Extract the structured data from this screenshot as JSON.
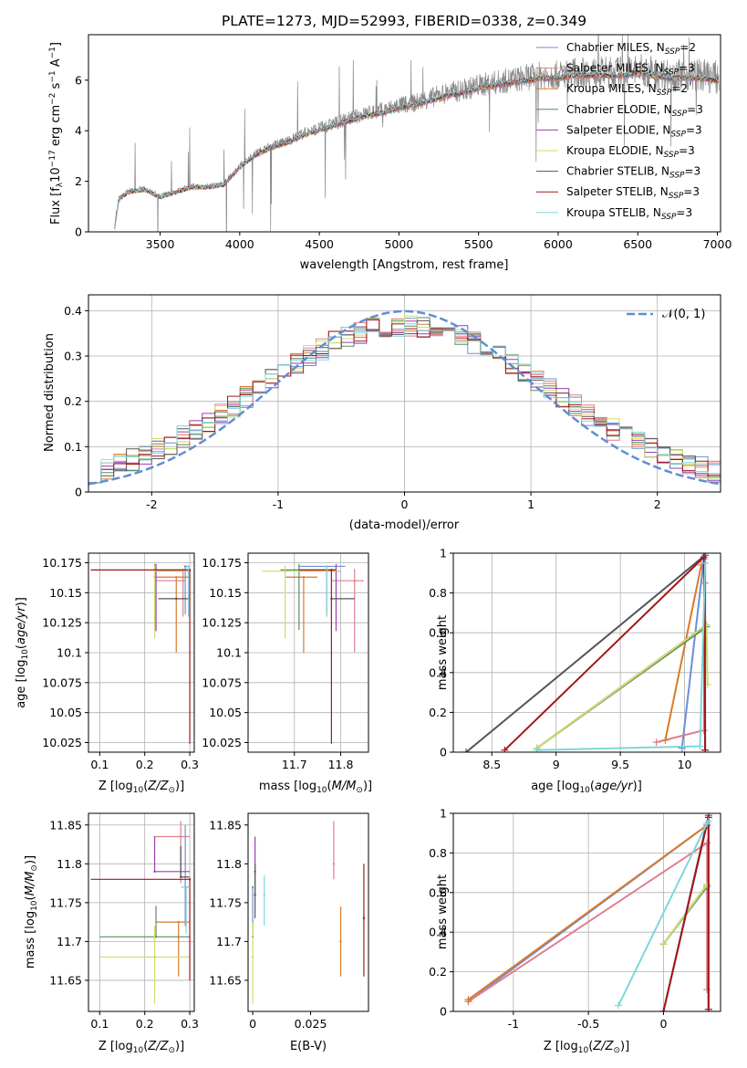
{
  "figure_title": "PLATE=1273, MJD=52993, FIBERID=0338, z=0.349",
  "colors": {
    "Chabrier MILES": "#6b8fd8",
    "Salpeter MILES": "#e07f8f",
    "Kroupa MILES": "#d97a2b",
    "Chabrier ELODIE": "#5f8a5f",
    "Salpeter ELODIE": "#9c3fb0",
    "Kroupa ELODIE": "#c9df6a",
    "Chabrier STELIB": "#555555",
    "Salpeter STELIB": "#a3161b",
    "Kroupa STELIB": "#7fd6dc"
  },
  "chart_data": [
    {
      "id": "spectrum",
      "type": "line",
      "title": "PLATE=1273, MJD=52993, FIBERID=0338, z=0.349",
      "xlabel": "wavelength [Angstrom, rest frame]",
      "ylabel": "Flux [f_λ 10^-17 erg cm^-2 s^-1 A^-1]",
      "xlim": [
        3050,
        7020
      ],
      "ylim": [
        0,
        7.8
      ],
      "xticks": [
        3500,
        4000,
        4500,
        5000,
        5500,
        6000,
        6500,
        7000
      ],
      "yticks": [
        0,
        2,
        4,
        6
      ],
      "grid": false,
      "legend": "top-right",
      "observed": {
        "x": [
          3210,
          3240,
          3300,
          3400,
          3500,
          3600,
          3700,
          3800,
          3900,
          4000,
          4100,
          4200,
          4300,
          4400,
          4500,
          4600,
          4700,
          4800,
          4900,
          5000,
          5100,
          5200,
          5300,
          5400,
          5500,
          5600,
          5700,
          5800,
          5900,
          6000,
          6100,
          6200,
          6300,
          6400,
          6500,
          6600,
          6700,
          6800,
          6900,
          7000
        ],
        "y": [
          0.0,
          1.3,
          1.6,
          1.7,
          1.4,
          1.6,
          1.8,
          1.8,
          1.9,
          2.6,
          3.1,
          3.4,
          3.6,
          3.9,
          4.1,
          4.3,
          4.5,
          4.7,
          4.8,
          5.0,
          5.1,
          5.3,
          5.5,
          5.6,
          5.8,
          5.9,
          6.0,
          6.1,
          6.2,
          6.2,
          6.3,
          6.3,
          6.3,
          6.3,
          6.4,
          6.3,
          6.2,
          6.2,
          6.2,
          6.1
        ]
      },
      "series": [
        {
          "name": "Chabrier MILES",
          "nssp": "2"
        },
        {
          "name": "Salpeter MILES",
          "nssp": "3"
        },
        {
          "name": "Kroupa MILES",
          "nssp": "2"
        },
        {
          "name": "Chabrier ELODIE",
          "nssp": "3"
        },
        {
          "name": "Salpeter ELODIE",
          "nssp": "3"
        },
        {
          "name": "Kroupa ELODIE",
          "nssp": "3"
        },
        {
          "name": "Chabrier STELIB",
          "nssp": "3"
        },
        {
          "name": "Salpeter STELIB",
          "nssp": "3"
        },
        {
          "name": "Kroupa STELIB",
          "nssp": "3"
        }
      ]
    },
    {
      "id": "residuals",
      "type": "step",
      "xlabel": "(data-model)/error",
      "ylabel": "Normed distribution",
      "xlim": [
        -2.5,
        2.5
      ],
      "ylim": [
        0,
        0.435
      ],
      "xticks": [
        -2,
        -1,
        0,
        1,
        2
      ],
      "yticks": [
        0.0,
        0.1,
        0.2,
        0.3,
        0.4
      ],
      "grid": true,
      "legend": "top-right",
      "reference": {
        "name": "𝒩(0, 1)",
        "mean": 0,
        "sigma": 1
      }
    },
    {
      "id": "age-vs-Z",
      "type": "errorbar",
      "xlabel": "Z [log10(Z/Z⊙)]",
      "ylabel": "age  [log10(age/yr)]",
      "xlim": [
        0.075,
        0.31
      ],
      "ylim": [
        10.017,
        10.183
      ],
      "xticks": [
        0.1,
        0.2,
        0.3
      ],
      "yticks": [
        10.025,
        10.05,
        10.075,
        10.1,
        10.125,
        10.15,
        10.175
      ],
      "grid": true,
      "points": [
        {
          "series": "Chabrier MILES",
          "x": 0.29,
          "xerr": [
            0.0,
            0.01
          ],
          "y": 10.172,
          "yerr": [
            0.04,
            0.0
          ]
        },
        {
          "series": "Salpeter MILES",
          "x": 0.285,
          "xerr": [
            0.06,
            0.005
          ],
          "y": 10.16,
          "yerr": [
            0.03,
            0.01
          ]
        },
        {
          "series": "Kroupa MILES",
          "x": 0.27,
          "xerr": [
            0.05,
            0.03
          ],
          "y": 10.163,
          "yerr": [
            0.063,
            0.0
          ]
        },
        {
          "series": "Chabrier ELODIE",
          "x": 0.222,
          "xerr": [
            0.0,
            0.08
          ],
          "y": 10.169,
          "yerr": [
            0.05,
            0.005
          ]
        },
        {
          "series": "Salpeter ELODIE",
          "x": 0.225,
          "xerr": [
            0.0,
            0.075
          ],
          "y": 10.168,
          "yerr": [
            0.05,
            0.006
          ]
        },
        {
          "series": "Kroupa ELODIE",
          "x": 0.222,
          "xerr": [
            0.0,
            0.08
          ],
          "y": 10.168,
          "yerr": [
            0.056,
            0.005
          ]
        },
        {
          "series": "Chabrier STELIB",
          "x": 0.27,
          "xerr": [
            0.04,
            0.03
          ],
          "y": 10.145,
          "yerr": [
            0.0,
            0.0
          ]
        },
        {
          "series": "Salpeter STELIB",
          "x": 0.3,
          "xerr": [
            0.22,
            0.0
          ],
          "y": 10.169,
          "yerr": [
            0.145,
            0.0
          ]
        },
        {
          "series": "Kroupa STELIB",
          "x": 0.297,
          "xerr": [
            0.0,
            0.003
          ],
          "y": 10.172,
          "yerr": [
            0.042,
            0.0
          ]
        }
      ]
    },
    {
      "id": "age-vs-mass",
      "type": "errorbar",
      "xlabel": "mass [log10(M/M⊙)]",
      "ylabel": "",
      "xlim": [
        11.6,
        11.86
      ],
      "ylim": [
        10.017,
        10.183
      ],
      "xticks": [
        11.7,
        11.8
      ],
      "yticks": [
        10.025,
        10.05,
        10.075,
        10.1,
        10.125,
        10.15,
        10.175
      ],
      "grid": true,
      "points": [
        {
          "series": "Chabrier MILES",
          "x": 11.77,
          "xerr": [
            0.06,
            0.04
          ],
          "y": 10.172,
          "yerr": [
            0.04,
            0.0
          ]
        },
        {
          "series": "Salpeter MILES",
          "x": 11.83,
          "xerr": [
            0.05,
            0.02
          ],
          "y": 10.16,
          "yerr": [
            0.06,
            0.01
          ]
        },
        {
          "series": "Kroupa MILES",
          "x": 11.72,
          "xerr": [
            0.04,
            0.03
          ],
          "y": 10.163,
          "yerr": [
            0.063,
            0.0
          ]
        },
        {
          "series": "Chabrier ELODIE",
          "x": 11.71,
          "xerr": [
            0.04,
            0.08
          ],
          "y": 10.169,
          "yerr": [
            0.05,
            0.005
          ]
        },
        {
          "series": "Salpeter ELODIE",
          "x": 11.79,
          "xerr": [
            0.08,
            0.01
          ],
          "y": 10.168,
          "yerr": [
            0.05,
            0.006
          ]
        },
        {
          "series": "Kroupa ELODIE",
          "x": 11.68,
          "xerr": [
            0.05,
            0.12
          ],
          "y": 10.168,
          "yerr": [
            0.056,
            0.005
          ]
        },
        {
          "series": "Chabrier STELIB",
          "x": 11.78,
          "xerr": [
            0.0,
            0.05
          ],
          "y": 10.145,
          "yerr": [
            0.0,
            0.0
          ]
        },
        {
          "series": "Salpeter STELIB",
          "x": 11.78,
          "xerr": [
            0.07,
            0.01
          ],
          "y": 10.169,
          "yerr": [
            0.145,
            0.0
          ]
        },
        {
          "series": "Kroupa STELIB",
          "x": 11.77,
          "xerr": [
            0.0,
            0.0
          ],
          "y": 10.172,
          "yerr": [
            0.042,
            0.0
          ]
        }
      ]
    },
    {
      "id": "weight-vs-age",
      "type": "line",
      "xlabel": "age  [log10(age/yr)]",
      "ylabel": "mass weight",
      "xlim": [
        8.2,
        10.28
      ],
      "ylim": [
        0,
        1.0
      ],
      "xticks": [
        8.5,
        9.0,
        9.5,
        10.0
      ],
      "yticks": [
        0.0,
        0.2,
        0.4,
        0.6,
        0.8,
        1.0
      ],
      "grid": true,
      "series": [
        {
          "name": "Chabrier MILES",
          "x": [
            9.98,
            10.15
          ],
          "y": [
            0.02,
            0.97
          ]
        },
        {
          "name": "Salpeter MILES",
          "x": [
            9.78,
            10.15,
            10.16
          ],
          "y": [
            0.05,
            0.11,
            0.85
          ]
        },
        {
          "name": "Kroupa MILES",
          "x": [
            9.85,
            10.13
          ],
          "y": [
            0.06,
            0.94
          ]
        },
        {
          "name": "Chabrier ELODIE",
          "x": [
            8.85,
            10.17
          ],
          "y": [
            0.02,
            0.63
          ]
        },
        {
          "name": "Salpeter ELODIE",
          "x": [
            8.85,
            10.17
          ],
          "y": [
            0.02,
            0.64
          ]
        },
        {
          "name": "Kroupa ELODIE",
          "x": [
            8.85,
            10.17,
            10.18
          ],
          "y": [
            0.02,
            0.64,
            0.34
          ]
        },
        {
          "name": "Chabrier STELIB",
          "x": [
            8.3,
            10.16,
            10.16
          ],
          "y": [
            0.0,
            0.99,
            0.01
          ]
        },
        {
          "name": "Salpeter STELIB",
          "x": [
            8.6,
            10.15,
            10.16
          ],
          "y": [
            0.01,
            0.98,
            0.01
          ]
        },
        {
          "name": "Kroupa STELIB",
          "x": [
            8.85,
            10.12,
            10.16
          ],
          "y": [
            0.01,
            0.03,
            0.95
          ]
        }
      ]
    },
    {
      "id": "mass-vs-Z",
      "type": "errorbar",
      "xlabel": "Z [log10(Z/Z⊙)]",
      "ylabel": "mass [log10(M/M⊙)]",
      "xlim": [
        0.075,
        0.31
      ],
      "ylim": [
        11.61,
        11.865
      ],
      "xticks": [
        0.1,
        0.2,
        0.3
      ],
      "yticks": [
        11.65,
        11.7,
        11.75,
        11.8,
        11.85
      ],
      "grid": true,
      "points": [
        {
          "series": "Chabrier MILES",
          "x": 0.29,
          "xerr": [
            0.0,
            0.01
          ],
          "y": 11.77,
          "yerr": [
            0.05,
            0.08
          ]
        },
        {
          "series": "Salpeter MILES",
          "x": 0.28,
          "xerr": [
            0.06,
            0.02
          ],
          "y": 11.835,
          "yerr": [
            0.06,
            0.02
          ]
        },
        {
          "series": "Kroupa MILES",
          "x": 0.275,
          "xerr": [
            0.05,
            0.025
          ],
          "y": 11.725,
          "yerr": [
            0.07,
            0.0
          ]
        },
        {
          "series": "Chabrier ELODIE",
          "x": 0.225,
          "xerr": [
            0.125,
            0.075
          ],
          "y": 11.706,
          "yerr": [
            0.0,
            0.04
          ]
        },
        {
          "series": "Salpeter ELODIE",
          "x": 0.222,
          "xerr": [
            0.0,
            0.078
          ],
          "y": 11.79,
          "yerr": [
            0.0,
            0.045
          ]
        },
        {
          "series": "Kroupa ELODIE",
          "x": 0.222,
          "xerr": [
            0.122,
            0.078
          ],
          "y": 11.68,
          "yerr": [
            0.06,
            0.04
          ]
        },
        {
          "series": "Chabrier STELIB",
          "x": 0.28,
          "xerr": [
            0.0,
            0.02
          ],
          "y": 11.783,
          "yerr": [
            0.0,
            0.04
          ]
        },
        {
          "series": "Salpeter STELIB",
          "x": 0.3,
          "xerr": [
            0.22,
            0.0
          ],
          "y": 11.78,
          "yerr": [
            0.13,
            0.0
          ]
        },
        {
          "series": "Kroupa STELIB",
          "x": 0.292,
          "xerr": [
            0.012,
            0.008
          ],
          "y": 11.77,
          "yerr": [
            0.06,
            0.0
          ]
        }
      ]
    },
    {
      "id": "mass-vs-EBV",
      "type": "errorbar",
      "xlabel": "E(B-V)",
      "ylabel": "",
      "xlim": [
        -0.002,
        0.05
      ],
      "ylim": [
        11.61,
        11.865
      ],
      "xticks": [
        0.0,
        0.025
      ],
      "yticks": [
        11.65,
        11.7,
        11.75,
        11.8,
        11.85
      ],
      "grid": false,
      "points": [
        {
          "series": "Chabrier MILES",
          "x": 0.0,
          "xerr": [
            0.0,
            0.0
          ],
          "y": 11.77,
          "yerr": [
            0.05,
            0.0
          ]
        },
        {
          "series": "Salpeter MILES",
          "x": 0.035,
          "xerr": [
            0.0,
            0.0
          ],
          "y": 11.8,
          "yerr": [
            0.02,
            0.055
          ]
        },
        {
          "series": "Kroupa MILES",
          "x": 0.038,
          "xerr": [
            0.0,
            0.0
          ],
          "y": 11.7,
          "yerr": [
            0.045,
            0.045
          ]
        },
        {
          "series": "Chabrier ELODIE",
          "x": 0.0,
          "xerr": [
            0.0,
            0.0
          ],
          "y": 11.706,
          "yerr": [
            0.0,
            0.02
          ]
        },
        {
          "series": "Salpeter ELODIE",
          "x": 0.001,
          "xerr": [
            0.0,
            0.0
          ],
          "y": 11.79,
          "yerr": [
            0.03,
            0.045
          ]
        },
        {
          "series": "Kroupa ELODIE",
          "x": 0.0,
          "xerr": [
            0.0,
            0.0
          ],
          "y": 11.68,
          "yerr": [
            0.06,
            0.045
          ]
        },
        {
          "series": "Chabrier STELIB",
          "x": 0.001,
          "xerr": [
            0.0,
            0.0
          ],
          "y": 11.76,
          "yerr": [
            0.03,
            0.04
          ]
        },
        {
          "series": "Salpeter STELIB",
          "x": 0.048,
          "xerr": [
            0.0,
            0.0
          ],
          "y": 11.73,
          "yerr": [
            0.075,
            0.07
          ]
        },
        {
          "series": "Kroupa STELIB",
          "x": 0.005,
          "xerr": [
            0.0,
            0.0
          ],
          "y": 11.76,
          "yerr": [
            0.04,
            0.025
          ]
        }
      ]
    },
    {
      "id": "weight-vs-Z",
      "type": "line",
      "xlabel": "Z [log10(Z/Z⊙)]",
      "ylabel": "mass weight",
      "xlim": [
        -1.4,
        0.38
      ],
      "ylim": [
        0,
        1.0
      ],
      "xticks": [
        -1.0,
        -0.5,
        0.0
      ],
      "yticks": [
        0.0,
        0.2,
        0.4,
        0.6,
        0.8,
        1.0
      ],
      "grid": true,
      "series": [
        {
          "name": "Chabrier MILES",
          "x": [
            -1.3,
            0.29
          ],
          "y": [
            0.05,
            0.94
          ]
        },
        {
          "name": "Salpeter MILES",
          "x": [
            -1.3,
            0.29,
            0.29
          ],
          "y": [
            0.05,
            0.85,
            0.11
          ]
        },
        {
          "name": "Kroupa MILES",
          "x": [
            -1.3,
            0.29
          ],
          "y": [
            0.06,
            0.94
          ]
        },
        {
          "name": "Chabrier ELODIE",
          "x": [
            0.0,
            0.29
          ],
          "y": [
            0.34,
            0.63
          ]
        },
        {
          "name": "Salpeter ELODIE",
          "x": [
            0.0,
            0.29
          ],
          "y": [
            0.34,
            0.64
          ]
        },
        {
          "name": "Kroupa ELODIE",
          "x": [
            0.0,
            0.29
          ],
          "y": [
            0.34,
            0.64
          ]
        },
        {
          "name": "Chabrier STELIB",
          "x": [
            0.0,
            0.3,
            0.3
          ],
          "y": [
            0.0,
            0.99,
            0.01
          ]
        },
        {
          "name": "Salpeter STELIB",
          "x": [
            0.0,
            0.3,
            0.3
          ],
          "y": [
            0.0,
            0.98,
            0.01
          ]
        },
        {
          "name": "Kroupa STELIB",
          "x": [
            -0.3,
            0.29,
            0.3
          ],
          "y": [
            0.03,
            0.95,
            0.96
          ]
        }
      ]
    }
  ]
}
